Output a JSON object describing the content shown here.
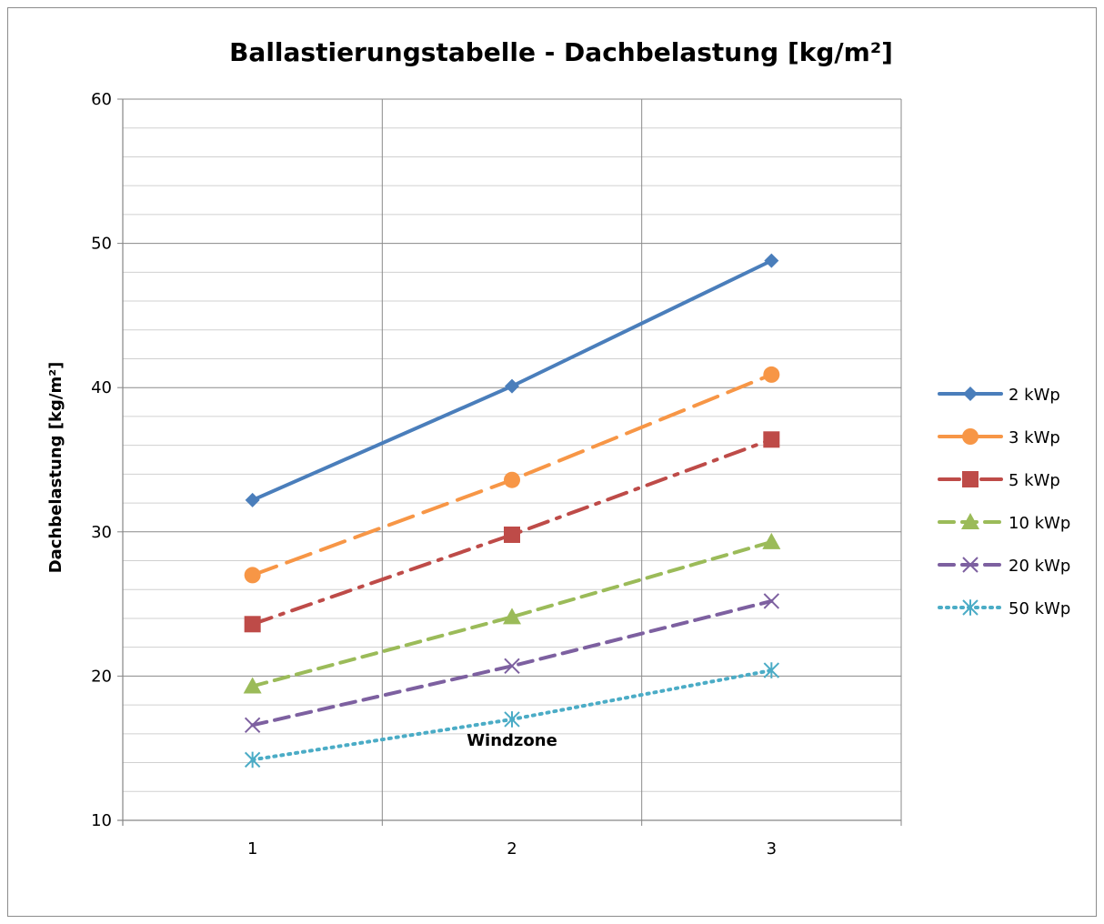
{
  "chart_data": {
    "type": "line",
    "title": "Ballastierungstabelle - Dachbelastung [kg/m²]",
    "xlabel": "Windzone",
    "ylabel": "Dachbelastung [kg/m²]",
    "x": [
      1,
      2,
      3
    ],
    "x_tick_labels": [
      "1",
      "2",
      "3"
    ],
    "ylim": [
      10,
      60
    ],
    "y_major_step": 10,
    "y_minor_step": 2,
    "y_tick_labels": [
      "10",
      "20",
      "30",
      "40",
      "50",
      "60"
    ],
    "grid": true,
    "legend_position": "right",
    "series": [
      {
        "name": "2 kWp",
        "values": [
          32.2,
          40.1,
          48.8
        ],
        "color": "#4a7ebb",
        "marker": "diamond",
        "dash": "solid"
      },
      {
        "name": "3 kWp",
        "values": [
          27.0,
          33.6,
          40.9
        ],
        "color": "#f79646",
        "marker": "circle",
        "dash": "long-dash"
      },
      {
        "name": "5 kWp",
        "values": [
          23.6,
          29.8,
          36.4
        ],
        "color": "#be4b48",
        "marker": "square",
        "dash": "long-dash-dot"
      },
      {
        "name": "10 kWp",
        "values": [
          19.3,
          24.1,
          29.3
        ],
        "color": "#9bbb59",
        "marker": "triangle",
        "dash": "dash"
      },
      {
        "name": "20 kWp",
        "values": [
          16.6,
          20.7,
          25.2
        ],
        "color": "#7d60a0",
        "marker": "x",
        "dash": "dash"
      },
      {
        "name": "50 kWp",
        "values": [
          14.2,
          17.0,
          20.4
        ],
        "color": "#4bacc6",
        "marker": "star",
        "dash": "dot"
      }
    ]
  }
}
